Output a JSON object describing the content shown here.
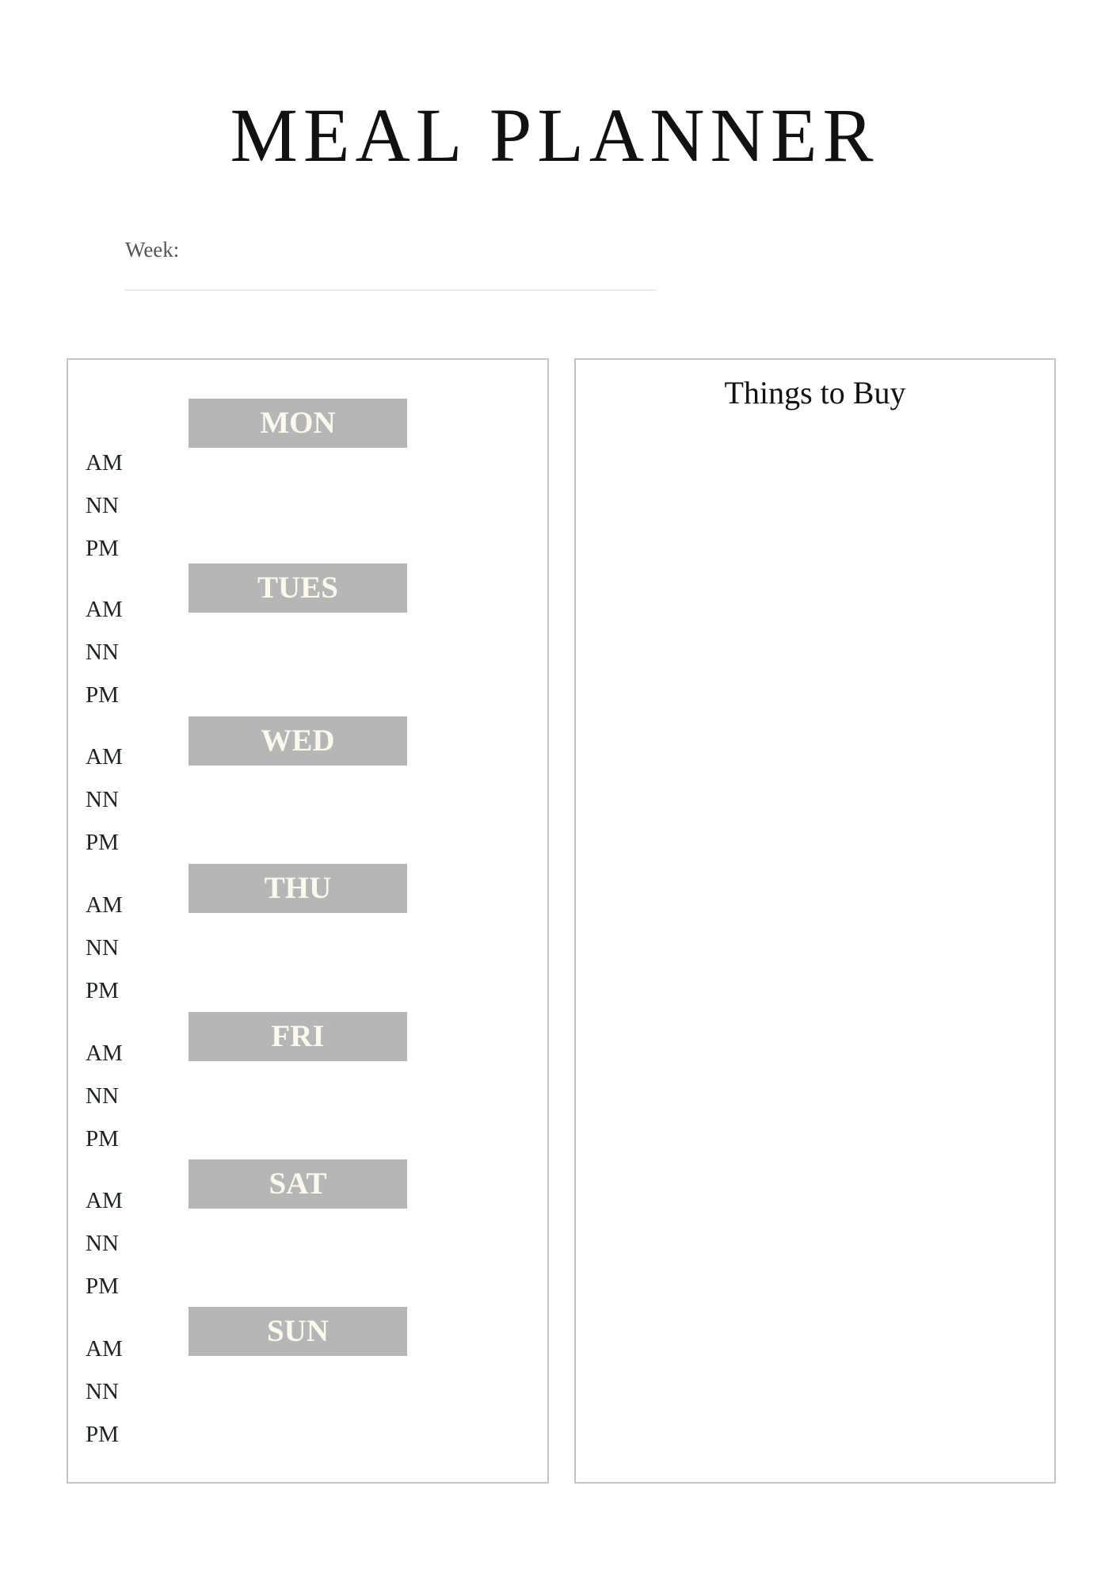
{
  "title": "MEAL PLANNER",
  "week_label": "Week:",
  "week_value": "",
  "things_to_buy_title": "Things to Buy",
  "meal_labels": [
    "AM",
    "NN",
    "PM"
  ],
  "days": [
    "MON",
    "TUES",
    "WED",
    "THU",
    "FRI",
    "SAT",
    "SUN"
  ],
  "colors": {
    "day_bar": "#b6b6b6",
    "day_text": "#fbf8ee",
    "border": "#c4c4c4",
    "text": "#1d2322"
  }
}
